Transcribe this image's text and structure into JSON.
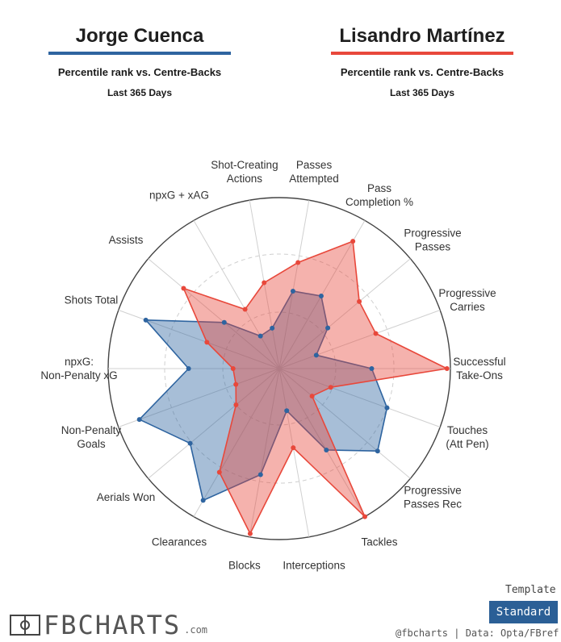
{
  "header": {
    "players": [
      {
        "name": "Jorge Cuenca",
        "subtitle": "Percentile rank vs. Centre-Backs",
        "period": "Last 365 Days",
        "color": "#2e64a0"
      },
      {
        "name": "Lisandro Martínez",
        "subtitle": "Percentile rank vs. Centre-Backs",
        "period": "Last 365 Days",
        "color": "#e8483b"
      }
    ]
  },
  "chart_data": {
    "type": "radar",
    "range": [
      0,
      100
    ],
    "grid": true,
    "categories": [
      "Passes Attempted",
      "Pass Completion %",
      "Progressive Passes",
      "Progressive Carries",
      "Successful Take-Ons",
      "Touches (Att Pen)",
      "Progressive Passes Rec",
      "Tackles",
      "Interceptions",
      "Blocks",
      "Clearances",
      "Aerials Won",
      "Non-Penalty Goals",
      "npxG: Non-Penalty xG",
      "Shots Total",
      "Assists",
      "npxG + xAG",
      "Shot-Creating Actions"
    ],
    "series": [
      {
        "name": "Jorge Cuenca",
        "color": "#2e64a0",
        "values": [
          46,
          49,
          37,
          23,
          54,
          67,
          75,
          55,
          25,
          63,
          89,
          68,
          87,
          53,
          83,
          42,
          22,
          24
        ]
      },
      {
        "name": "Lisandro Martínez",
        "color": "#e8483b",
        "values": [
          63,
          86,
          61,
          60,
          98,
          32,
          25,
          100,
          47,
          98,
          70,
          33,
          27,
          27,
          45,
          73,
          40,
          51
        ]
      }
    ]
  },
  "footer": {
    "template_label": "Template",
    "template_value": "Standard",
    "logo": "FBCHARTS",
    "logo_domain": ".com",
    "credit": "@fbcharts | Data: Opta/FBref"
  }
}
